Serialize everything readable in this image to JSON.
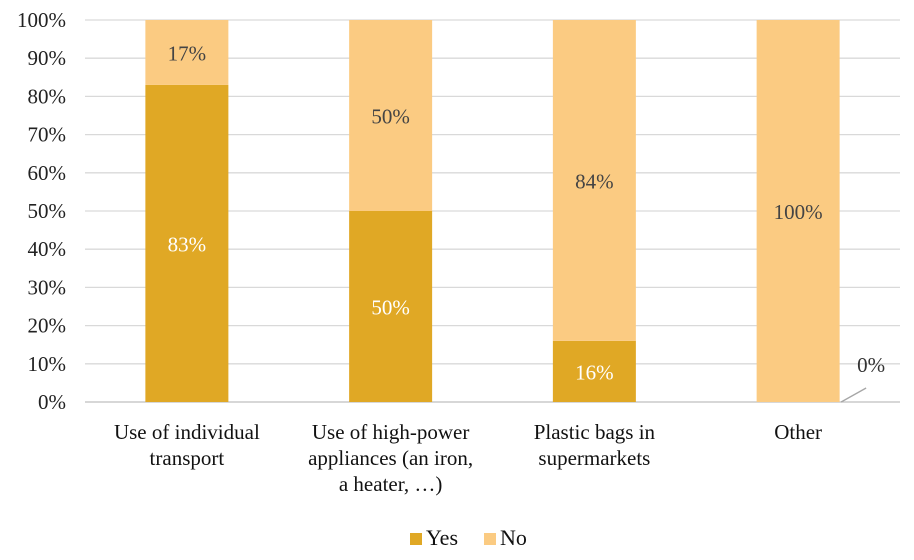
{
  "chart_data": {
    "type": "bar",
    "stacked": true,
    "percent": true,
    "categories": [
      [
        "Use of individual",
        "transport"
      ],
      [
        "Use of high-power",
        "appliances (an iron,",
        "a heater, …)"
      ],
      [
        "Plastic bags in",
        "supermarkets"
      ],
      [
        "Other"
      ]
    ],
    "series": [
      {
        "name": "Yes",
        "color": "#E0A825",
        "values": [
          83,
          50,
          16,
          0
        ],
        "labels": [
          "83%",
          "50%",
          "16%",
          "0%"
        ],
        "label_color": "#ffffff"
      },
      {
        "name": "No",
        "color": "#FBCB82",
        "values": [
          17,
          50,
          84,
          100
        ],
        "labels": [
          "17%",
          "50%",
          "84%",
          "100%"
        ],
        "label_color": "#444444"
      }
    ],
    "ylim": [
      0,
      100
    ],
    "yticks": [
      0,
      10,
      20,
      30,
      40,
      50,
      60,
      70,
      80,
      90,
      100
    ],
    "ytick_labels": [
      "0%",
      "10%",
      "20%",
      "30%",
      "40%",
      "50%",
      "60%",
      "70%",
      "80%",
      "90%",
      "100%"
    ],
    "grid": true,
    "gridline_color": "#d9d9d9",
    "axis_color": "#bfbfbf",
    "legend_position": "bottom",
    "title": "",
    "xlabel": "",
    "ylabel": ""
  }
}
